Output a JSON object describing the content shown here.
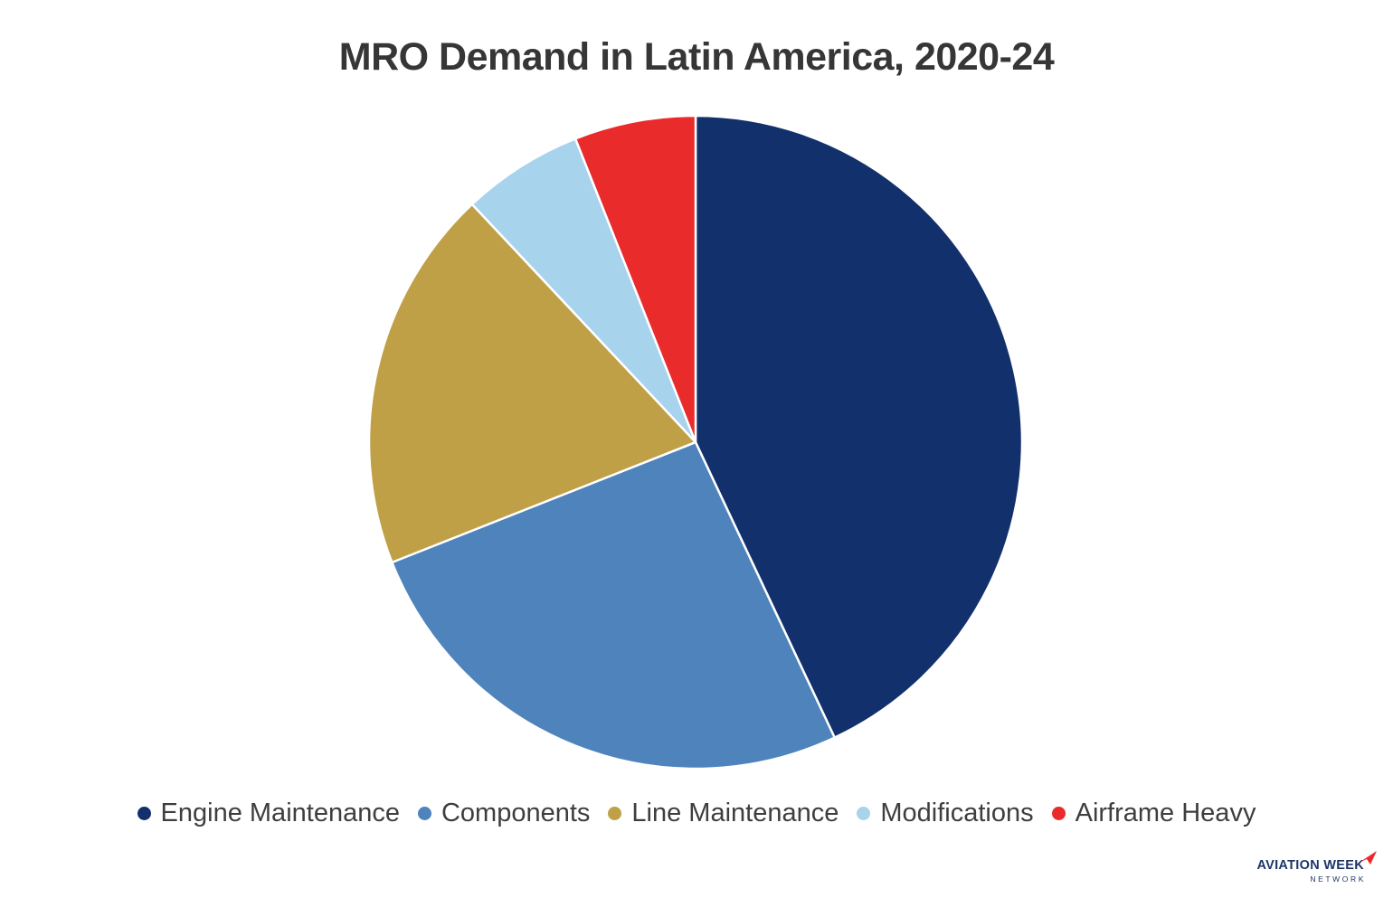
{
  "title": "MRO Demand in Latin America, 2020-24",
  "chart_data": {
    "type": "pie",
    "title": "MRO Demand in Latin America, 2020-24",
    "categories": [
      "Engine Maintenance",
      "Components",
      "Line Maintenance",
      "Modifications",
      "Airframe Heavy"
    ],
    "values": [
      43,
      26,
      19,
      6,
      6
    ],
    "values_unit": "percent (estimated from slice angles, no data labels shown)",
    "colors": [
      "#12306B",
      "#4F83BC",
      "#BFA046",
      "#A8D3EC",
      "#E92B2B"
    ],
    "start_angle_deg": 0,
    "direction": "clockwise",
    "slice_border_color": "#FFFFFF",
    "legend_position": "bottom",
    "background": "#FFFFFF"
  },
  "legend": {
    "items": [
      {
        "label": "Engine Maintenance",
        "color": "#12306B"
      },
      {
        "label": "Components",
        "color": "#4F83BC"
      },
      {
        "label": "Line Maintenance",
        "color": "#BFA046"
      },
      {
        "label": "Modifications",
        "color": "#A8D3EC"
      },
      {
        "label": "Airframe Heavy",
        "color": "#E92B2B"
      }
    ]
  },
  "branding": {
    "name": "AVIATION WEEK",
    "network": "NETWORK",
    "text_color": "#1C3567",
    "arrow_color": "#E92B2B"
  },
  "styles": {
    "background": "#FFFFFF",
    "title_color": "#363636",
    "legend_text_color": "#3E3E3E"
  }
}
